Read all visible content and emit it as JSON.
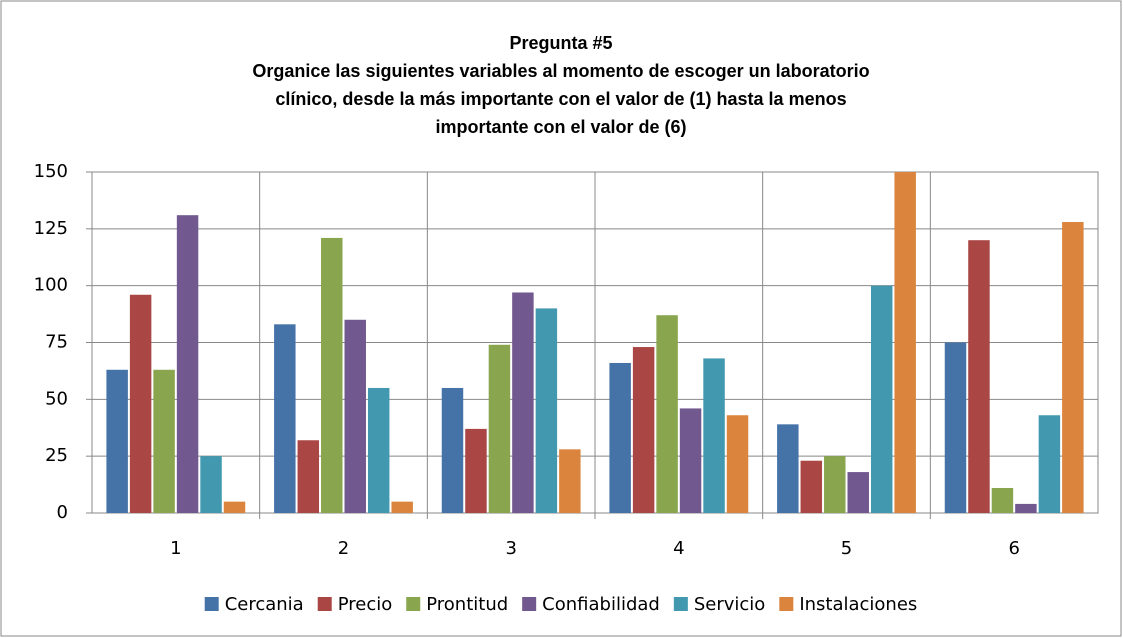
{
  "chart_data": {
    "type": "bar",
    "title": [
      "Pregunta #5",
      "Organice las siguientes variables al momento de escoger un laboratorio",
      "clínico, desde la más importante con el valor de (1) hasta la menos",
      "importante con el valor de (6)"
    ],
    "categories": [
      "1",
      "2",
      "3",
      "4",
      "5",
      "6"
    ],
    "series": [
      {
        "name": "Cercania",
        "color": "#4572a7",
        "values": [
          63,
          83,
          55,
          66,
          39,
          75
        ]
      },
      {
        "name": "Precio",
        "color": "#aa4643",
        "values": [
          96,
          32,
          37,
          73,
          23,
          120
        ]
      },
      {
        "name": "Prontitud",
        "color": "#89a54e",
        "values": [
          63,
          121,
          74,
          87,
          25,
          11
        ]
      },
      {
        "name": "Confiabilidad",
        "color": "#71588f",
        "values": [
          131,
          85,
          97,
          46,
          18,
          4
        ]
      },
      {
        "name": "Servicio",
        "color": "#4198af",
        "values": [
          25,
          55,
          90,
          68,
          100,
          43
        ]
      },
      {
        "name": "Instalaciones",
        "color": "#db843d",
        "values": [
          5,
          5,
          28,
          43,
          150,
          128
        ]
      }
    ],
    "ylim": [
      0,
      150
    ],
    "yticks": [
      0,
      25,
      50,
      75,
      100,
      125,
      150
    ],
    "grid": true,
    "legend": "bottom"
  }
}
